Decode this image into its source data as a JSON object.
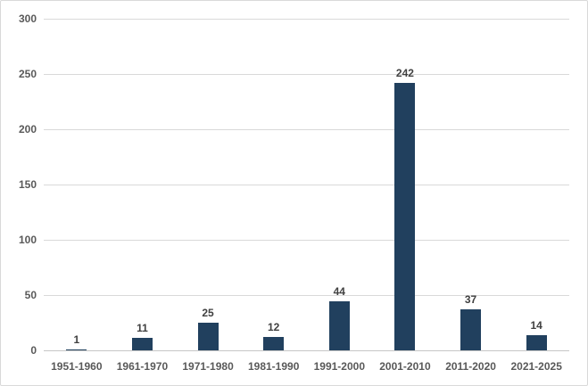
{
  "chart_data": {
    "type": "bar",
    "title": "",
    "xlabel": "",
    "ylabel": "",
    "categories": [
      "1951-1960",
      "1961-1970",
      "1971-1980",
      "1981-1990",
      "1991-2000",
      "2001-2010",
      "2011-2020",
      "2021-2025"
    ],
    "values": [
      1,
      11,
      25,
      12,
      44,
      242,
      37,
      14
    ],
    "data_labels": [
      "1",
      "11",
      "25",
      "12",
      "44",
      "242",
      "37",
      "14"
    ],
    "ylim": [
      0,
      300
    ],
    "ytick_step": 50,
    "yticks": [
      0,
      50,
      100,
      150,
      200,
      250,
      300
    ],
    "grid": true,
    "legend_position": "none",
    "colors": {
      "bar": "#21405E",
      "gridline": "#D9D9D9",
      "axis_line": "#C6C6C6",
      "tick_label": "#595959",
      "data_label": "#404040",
      "background": "#FFFFFF",
      "card_border": "#D9D9D9"
    }
  }
}
